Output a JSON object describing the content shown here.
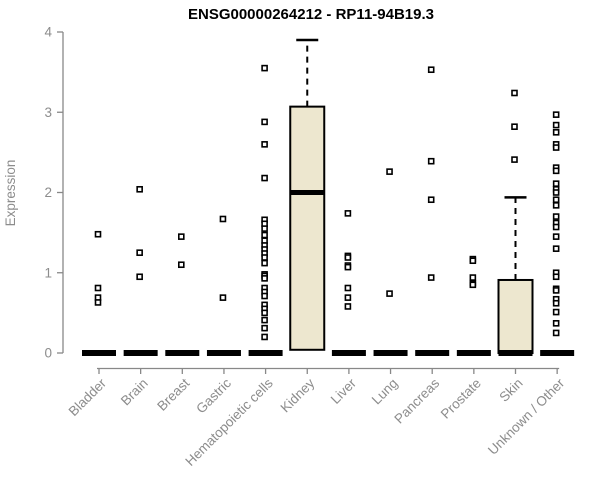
{
  "chart_data": {
    "type": "boxplot",
    "title": "ENSG00000264212 - RP11-94B19.3",
    "ylabel": "Expression",
    "xlabel": "",
    "ylim": [
      0,
      4
    ],
    "yticks": [
      0,
      1,
      2,
      3,
      4
    ],
    "grid": false,
    "legend": null,
    "colors": {
      "box_fill": "#EDE7CF",
      "box_border": "#000000",
      "axis_line": "#888888",
      "tick_label": "#8c8c8c",
      "title_color": "#000000",
      "point_fill": "#ffffff",
      "point_border": "#000000"
    },
    "categories": [
      {
        "label": "Bladder",
        "q1": 0,
        "median": 0,
        "q3": 0,
        "whisker_high": 0,
        "points": [
          1.48,
          0.81,
          0.69,
          0.63
        ]
      },
      {
        "label": "Brain",
        "q1": 0,
        "median": 0,
        "q3": 0,
        "whisker_high": 0,
        "points": [
          2.04,
          1.25,
          0.95
        ]
      },
      {
        "label": "Breast",
        "q1": 0,
        "median": 0,
        "q3": 0,
        "whisker_high": 0,
        "points": [
          1.45,
          1.1
        ]
      },
      {
        "label": "Gastric",
        "q1": 0,
        "median": 0,
        "q3": 0,
        "whisker_high": 0,
        "points": [
          1.67,
          0.69
        ]
      },
      {
        "label": "Hematopoietic cells",
        "q1": 0,
        "median": 0,
        "q3": 0,
        "whisker_high": 0,
        "points": [
          3.55,
          2.88,
          2.6,
          2.18,
          1.66,
          1.61,
          1.55,
          1.47,
          1.4,
          1.34,
          1.29,
          1.24,
          1.19,
          1.12,
          0.98,
          0.96,
          0.93,
          0.81,
          0.76,
          0.71,
          0.6,
          0.55,
          0.5,
          0.41,
          0.31,
          0.2
        ]
      },
      {
        "label": "Kidney",
        "q1": 0.04,
        "median": 2.0,
        "q3": 3.07,
        "whisker_high": 3.9,
        "points": []
      },
      {
        "label": "Liver",
        "q1": 0,
        "median": 0,
        "q3": 0,
        "whisker_high": 0,
        "points": [
          1.74,
          1.21,
          1.19,
          1.09,
          1.07,
          0.81,
          0.69,
          0.58
        ]
      },
      {
        "label": "Lung",
        "q1": 0,
        "median": 0,
        "q3": 0,
        "whisker_high": 0,
        "points": [
          2.26,
          0.74
        ]
      },
      {
        "label": "Pancreas",
        "q1": 0,
        "median": 0,
        "q3": 0,
        "whisker_high": 0,
        "points": [
          3.53,
          2.39,
          1.91,
          0.94
        ]
      },
      {
        "label": "Prostate",
        "q1": 0,
        "median": 0,
        "q3": 0,
        "whisker_high": 0,
        "points": [
          1.17,
          1.15,
          0.94,
          0.87,
          0.85
        ]
      },
      {
        "label": "Skin",
        "q1": 0,
        "median": 0,
        "q3": 0.91,
        "whisker_high": 1.94,
        "points": [
          3.24,
          2.82,
          2.41
        ]
      },
      {
        "label": "Unknown / Other",
        "q1": 0,
        "median": 0,
        "q3": 0,
        "whisker_high": 0,
        "points": [
          2.97,
          2.84,
          2.75,
          2.6,
          2.56,
          2.31,
          2.27,
          2.11,
          2.04,
          2.0,
          1.91,
          1.84,
          1.7,
          1.62,
          1.57,
          1.45,
          1.3,
          1.0,
          0.95,
          0.8,
          0.78,
          0.67,
          0.62,
          0.51,
          0.37,
          0.25
        ]
      }
    ]
  }
}
